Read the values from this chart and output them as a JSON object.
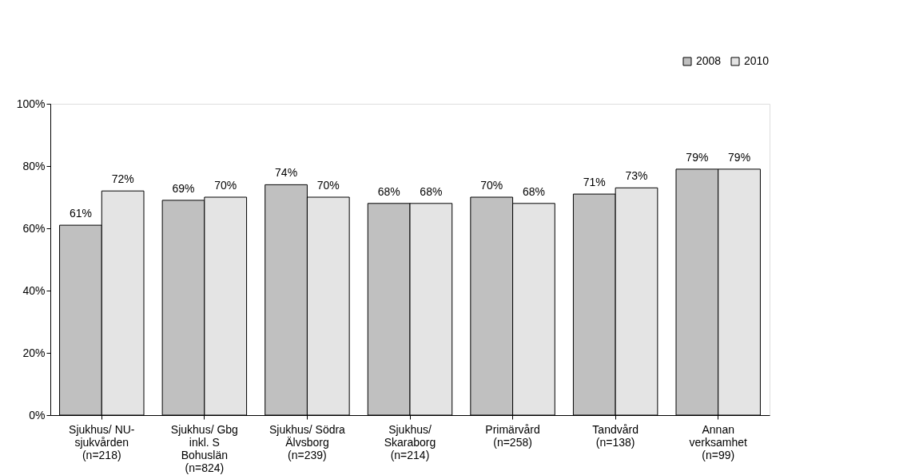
{
  "chart_data": {
    "type": "bar",
    "categories": [
      "Sjukhus/ NU-\nsjukvården\n(n=218)",
      "Sjukhus/ Gbg\ninkl. S\nBohuslän\n(n=824)",
      "Sjukhus/ Södra\nÄlvsborg\n(n=239)",
      "Sjukhus/\nSkaraborg\n(n=214)",
      "Primärvård\n(n=258)",
      "Tandvård\n(n=138)",
      "Annan\nverksamhet\n(n=99)"
    ],
    "series": [
      {
        "name": "2008",
        "color": "#c0c0c0",
        "values": [
          61,
          69,
          74,
          68,
          70,
          71,
          79
        ],
        "value_labels": [
          "61%",
          "69%",
          "74%",
          "68%",
          "70%",
          "71%",
          "79%"
        ]
      },
      {
        "name": "2010",
        "color": "#e4e4e4",
        "values": [
          72,
          70,
          70,
          68,
          68,
          73,
          79
        ],
        "value_labels": [
          "72%",
          "70%",
          "70%",
          "68%",
          "68%",
          "73%",
          "79%"
        ]
      }
    ],
    "ylim": [
      0,
      100
    ],
    "yticks": [
      {
        "value": 0,
        "label": "0%"
      },
      {
        "value": 20,
        "label": "20%"
      },
      {
        "value": 40,
        "label": "40%"
      },
      {
        "value": 60,
        "label": "60%"
      },
      {
        "value": 80,
        "label": "80%"
      },
      {
        "value": 100,
        "label": "100%"
      }
    ],
    "legend": "top right",
    "grid": false
  }
}
